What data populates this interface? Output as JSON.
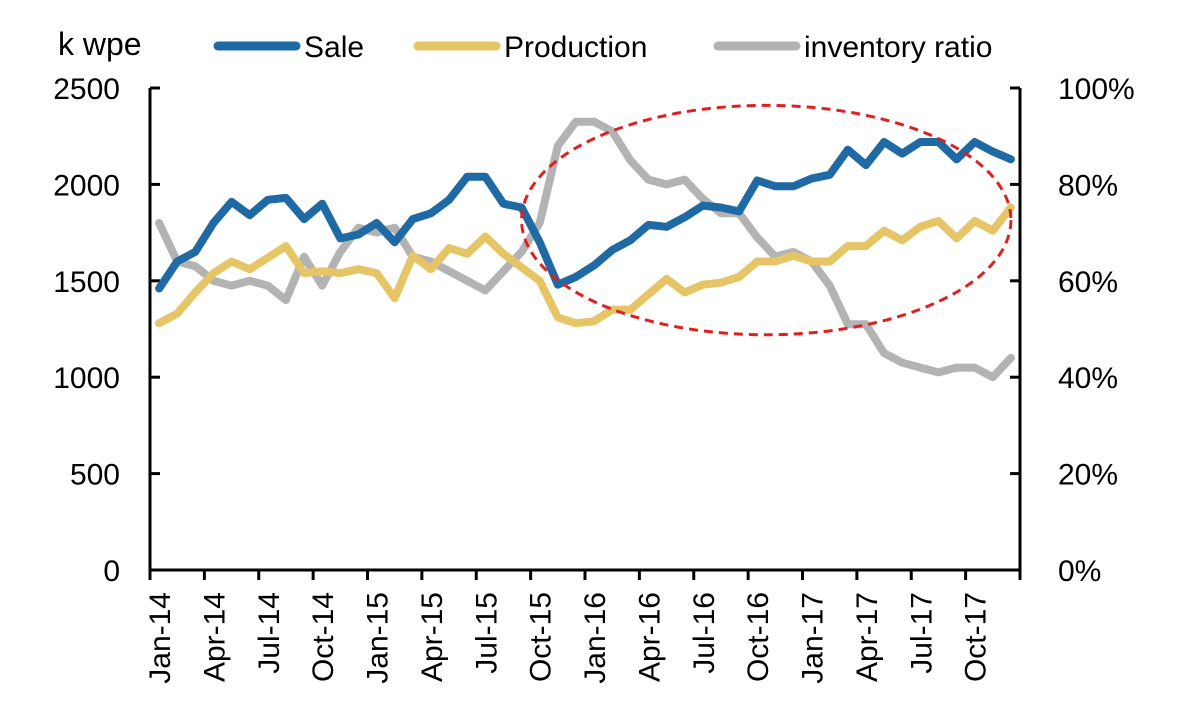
{
  "chart_data": {
    "type": "line",
    "y_left_label": "k wpe",
    "y_left_range": [
      0,
      2500
    ],
    "y_left_ticks": [
      "0",
      "500",
      "1000",
      "1500",
      "2000",
      "2500"
    ],
    "y_right_range": [
      0,
      1
    ],
    "y_right_ticks": [
      "0%",
      "20%",
      "40%",
      "60%",
      "80%",
      "100%"
    ],
    "x_tick_labels": [
      "Jan-14",
      "Apr-14",
      "Jul-14",
      "Oct-14",
      "Jan-15",
      "Apr-15",
      "Jul-15",
      "Oct-15",
      "Jan-16",
      "Apr-16",
      "Jul-16",
      "Oct-16",
      "Jan-17",
      "Apr-17",
      "Jul-17",
      "Oct-17"
    ],
    "x_months": 48,
    "legend_position": "top",
    "grid": false,
    "series": [
      {
        "name": "Sale",
        "color": "#1f6aa5",
        "axis": "left",
        "values": [
          1460,
          1600,
          1650,
          1800,
          1910,
          1840,
          1920,
          1930,
          1820,
          1900,
          1720,
          1740,
          1800,
          1700,
          1820,
          1850,
          1920,
          2040,
          2040,
          1900,
          1880,
          1700,
          1480,
          1520,
          1580,
          1660,
          1710,
          1790,
          1780,
          1830,
          1890,
          1880,
          1860,
          2020,
          1990,
          1990,
          2030,
          2050,
          2180,
          2100,
          2220,
          2160,
          2220,
          2220,
          2130,
          2220,
          2170,
          2130
        ]
      },
      {
        "name": "Production",
        "color": "#e6c566",
        "axis": "left",
        "values": [
          1280,
          1330,
          1440,
          1540,
          1600,
          1560,
          1620,
          1680,
          1540,
          1550,
          1540,
          1560,
          1540,
          1410,
          1630,
          1560,
          1670,
          1640,
          1730,
          1640,
          1570,
          1500,
          1310,
          1280,
          1290,
          1350,
          1350,
          1430,
          1510,
          1440,
          1480,
          1490,
          1520,
          1600,
          1600,
          1630,
          1600,
          1600,
          1680,
          1680,
          1760,
          1710,
          1780,
          1810,
          1720,
          1810,
          1760,
          1880
        ]
      },
      {
        "name": "inventory ratio",
        "color": "#b3b3b3",
        "axis": "right",
        "values": [
          0.72,
          0.64,
          0.63,
          0.6,
          0.59,
          0.6,
          0.59,
          0.56,
          0.65,
          0.59,
          0.66,
          0.71,
          0.7,
          0.71,
          0.65,
          0.64,
          0.62,
          0.6,
          0.58,
          0.62,
          0.66,
          0.72,
          0.88,
          0.93,
          0.93,
          0.91,
          0.85,
          0.81,
          0.8,
          0.81,
          0.77,
          0.74,
          0.74,
          0.69,
          0.65,
          0.66,
          0.64,
          0.59,
          0.51,
          0.51,
          0.45,
          0.43,
          0.42,
          0.41,
          0.42,
          0.42,
          0.4,
          0.44
        ]
      }
    ],
    "annotation": {
      "shape": "dashed-ellipse",
      "color": "#e02020",
      "month_range": [
        20,
        47
      ],
      "y_range": [
        1220,
        2410
      ]
    }
  }
}
